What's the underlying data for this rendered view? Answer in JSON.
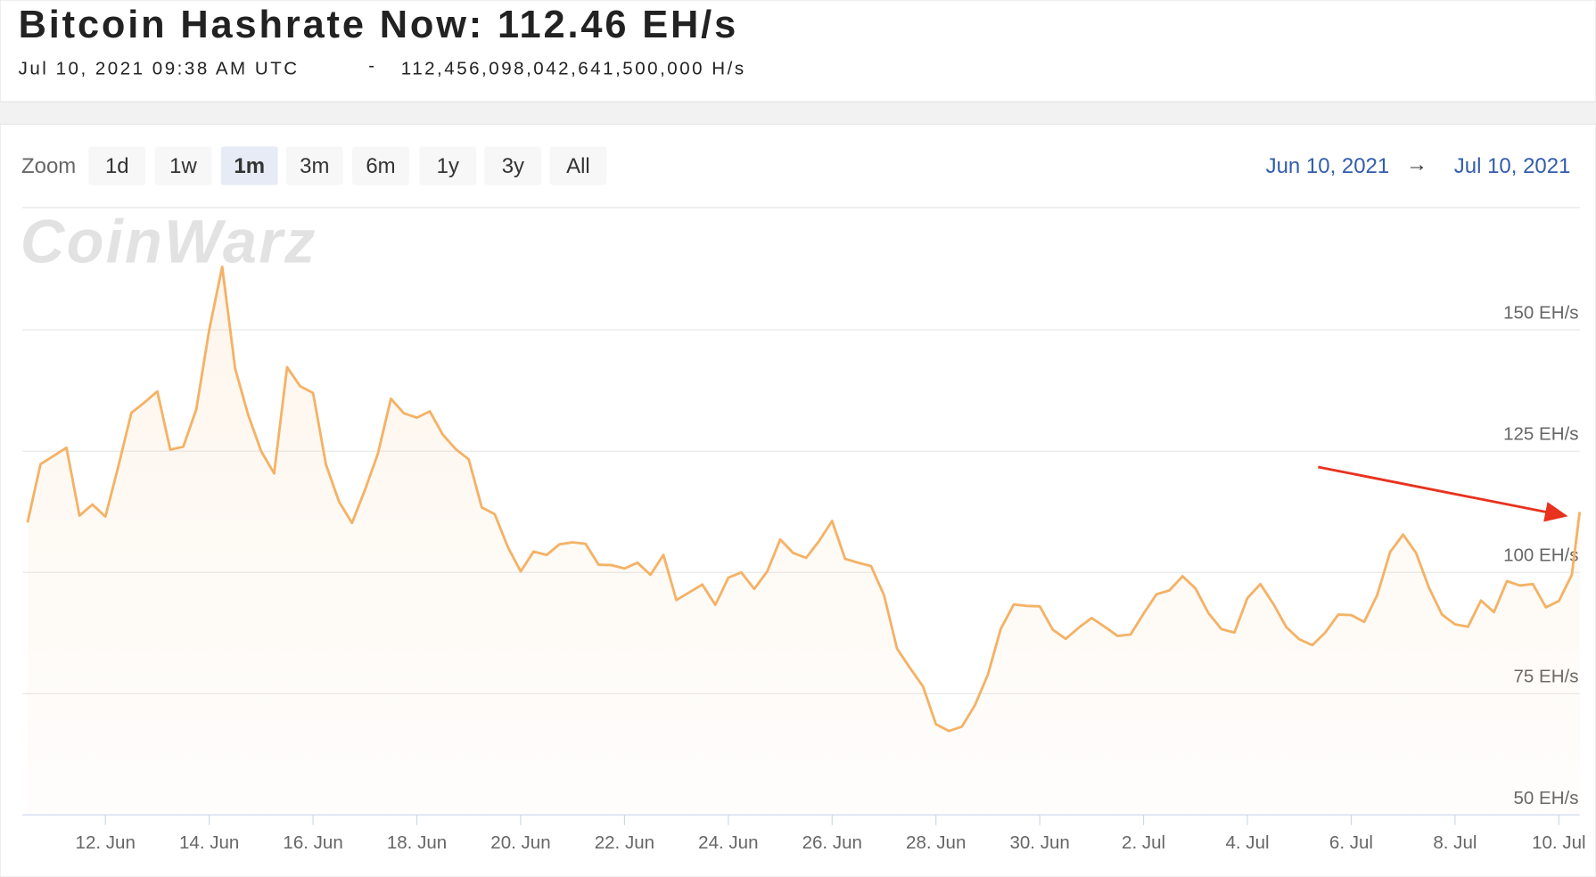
{
  "header": {
    "title": "Bitcoin Hashrate Now: 112.46 EH/s",
    "timestamp": "Jul 10, 2021 09:38 AM UTC",
    "separator": "-",
    "raw_hashrate": "112,456,098,042,641,500,000 H/s"
  },
  "toolbar": {
    "zoom_label": "Zoom",
    "zoom_options": [
      "1d",
      "1w",
      "1m",
      "3m",
      "6m",
      "1y",
      "3y",
      "All"
    ],
    "active_zoom": "1m",
    "range_from": "Jun 10, 2021",
    "range_arrow": "→",
    "range_to": "Jul 10, 2021"
  },
  "chart_data": {
    "type": "line",
    "watermark": "CoinWarz",
    "color": "#f4b266",
    "grid": true,
    "xlim": [
      "2021-06-10T09:38",
      "2021-07-10T09:38"
    ],
    "ylim": [
      50,
      175
    ],
    "yticks": [
      {
        "value": 50,
        "label": "50 EH/s"
      },
      {
        "value": 75,
        "label": "75 EH/s"
      },
      {
        "value": 100,
        "label": "100 EH/s"
      },
      {
        "value": 125,
        "label": "125 EH/s"
      },
      {
        "value": 150,
        "label": "150 EH/s"
      }
    ],
    "xticks": [
      {
        "value": "2021-06-12T00:00",
        "label": "12. Jun"
      },
      {
        "value": "2021-06-14T00:00",
        "label": "14. Jun"
      },
      {
        "value": "2021-06-16T00:00",
        "label": "16. Jun"
      },
      {
        "value": "2021-06-18T00:00",
        "label": "18. Jun"
      },
      {
        "value": "2021-06-20T00:00",
        "label": "20. Jun"
      },
      {
        "value": "2021-06-22T00:00",
        "label": "22. Jun"
      },
      {
        "value": "2021-06-24T00:00",
        "label": "24. Jun"
      },
      {
        "value": "2021-06-26T00:00",
        "label": "26. Jun"
      },
      {
        "value": "2021-06-28T00:00",
        "label": "28. Jun"
      },
      {
        "value": "2021-06-30T00:00",
        "label": "30. Jun"
      },
      {
        "value": "2021-07-02T00:00",
        "label": "2. Jul"
      },
      {
        "value": "2021-07-04T00:00",
        "label": "4. Jul"
      },
      {
        "value": "2021-07-06T00:00",
        "label": "6. Jul"
      },
      {
        "value": "2021-07-08T00:00",
        "label": "8. Jul"
      },
      {
        "value": "2021-07-10T00:00",
        "label": "10. Jul"
      }
    ],
    "x": [
      "2021-06-10T12:00",
      "2021-06-10T18:00",
      "2021-06-11T00:00",
      "2021-06-11T06:00",
      "2021-06-11T12:00",
      "2021-06-11T18:00",
      "2021-06-12T00:00",
      "2021-06-12T06:00",
      "2021-06-12T12:00",
      "2021-06-12T18:00",
      "2021-06-13T00:00",
      "2021-06-13T06:00",
      "2021-06-13T12:00",
      "2021-06-13T18:00",
      "2021-06-14T00:00",
      "2021-06-14T06:00",
      "2021-06-14T12:00",
      "2021-06-14T18:00",
      "2021-06-15T00:00",
      "2021-06-15T06:00",
      "2021-06-15T12:00",
      "2021-06-15T18:00",
      "2021-06-16T00:00",
      "2021-06-16T06:00",
      "2021-06-16T12:00",
      "2021-06-16T18:00",
      "2021-06-17T00:00",
      "2021-06-17T06:00",
      "2021-06-17T12:00",
      "2021-06-17T18:00",
      "2021-06-18T00:00",
      "2021-06-18T06:00",
      "2021-06-18T12:00",
      "2021-06-18T18:00",
      "2021-06-19T00:00",
      "2021-06-19T06:00",
      "2021-06-19T12:00",
      "2021-06-19T18:00",
      "2021-06-20T00:00",
      "2021-06-20T06:00",
      "2021-06-20T12:00",
      "2021-06-20T18:00",
      "2021-06-21T00:00",
      "2021-06-21T06:00",
      "2021-06-21T12:00",
      "2021-06-21T18:00",
      "2021-06-22T00:00",
      "2021-06-22T06:00",
      "2021-06-22T12:00",
      "2021-06-22T18:00",
      "2021-06-23T00:00",
      "2021-06-23T06:00",
      "2021-06-23T12:00",
      "2021-06-23T18:00",
      "2021-06-24T00:00",
      "2021-06-24T06:00",
      "2021-06-24T12:00",
      "2021-06-24T18:00",
      "2021-06-25T00:00",
      "2021-06-25T06:00",
      "2021-06-25T12:00",
      "2021-06-25T18:00",
      "2021-06-26T00:00",
      "2021-06-26T06:00",
      "2021-06-26T12:00",
      "2021-06-26T18:00",
      "2021-06-27T00:00",
      "2021-06-27T06:00",
      "2021-06-27T12:00",
      "2021-06-27T18:00",
      "2021-06-28T00:00",
      "2021-06-28T06:00",
      "2021-06-28T12:00",
      "2021-06-28T18:00",
      "2021-06-29T00:00",
      "2021-06-29T06:00",
      "2021-06-29T12:00",
      "2021-06-29T18:00",
      "2021-06-30T00:00",
      "2021-06-30T06:00",
      "2021-06-30T12:00",
      "2021-06-30T18:00",
      "2021-07-01T00:00",
      "2021-07-01T06:00",
      "2021-07-01T12:00",
      "2021-07-01T18:00",
      "2021-07-02T00:00",
      "2021-07-02T06:00",
      "2021-07-02T12:00",
      "2021-07-02T18:00",
      "2021-07-03T00:00",
      "2021-07-03T06:00",
      "2021-07-03T12:00",
      "2021-07-03T18:00",
      "2021-07-04T00:00",
      "2021-07-04T06:00",
      "2021-07-04T12:00",
      "2021-07-04T18:00",
      "2021-07-05T00:00",
      "2021-07-05T06:00",
      "2021-07-05T12:00",
      "2021-07-05T18:00",
      "2021-07-06T00:00",
      "2021-07-06T06:00",
      "2021-07-06T12:00",
      "2021-07-06T18:00",
      "2021-07-07T00:00",
      "2021-07-07T06:00",
      "2021-07-07T12:00",
      "2021-07-07T18:00",
      "2021-07-08T00:00",
      "2021-07-08T06:00",
      "2021-07-08T12:00",
      "2021-07-08T18:00",
      "2021-07-09T00:00",
      "2021-07-09T06:00",
      "2021-07-09T12:00",
      "2021-07-09T18:00",
      "2021-07-10T00:00",
      "2021-07-10T06:00",
      "2021-07-10T09:38"
    ],
    "values": [
      110.3,
      122.3,
      124,
      125.7,
      111.7,
      114,
      111.5,
      121.9,
      132.9,
      135,
      137.3,
      125.3,
      125.9,
      133.6,
      150,
      163,
      142,
      132.5,
      125,
      120.4,
      142.3,
      138.4,
      137,
      122.2,
      114.6,
      110.2,
      117,
      124.5,
      135.8,
      132.8,
      131.9,
      133.2,
      128.4,
      125.4,
      123.3,
      113.4,
      112,
      105.3,
      100.2,
      104.3,
      103.6,
      105.8,
      106.2,
      105.9,
      101.6,
      101.5,
      100.8,
      102,
      99.5,
      103.6,
      94.3,
      95.9,
      97.5,
      93.3,
      98.9,
      100,
      96.6,
      100.2,
      106.8,
      104,
      103,
      106.5,
      110.6,
      102.8,
      102,
      101.3,
      95.3,
      84.3,
      80.3,
      76.5,
      68.7,
      67.3,
      68.2,
      72.6,
      78.9,
      88.4,
      93.4,
      93.1,
      93,
      88.2,
      86.3,
      88.6,
      90.6,
      88.8,
      86.9,
      87.2,
      91.5,
      95.5,
      96.3,
      99.2,
      96.7,
      91.6,
      88.3,
      87.6,
      94.7,
      97.6,
      93.5,
      88.7,
      86.2,
      85,
      87.6,
      91.3,
      91.2,
      89.8,
      95.3,
      104.2,
      107.8,
      104,
      96.8,
      91.3,
      89.3,
      88.8,
      94.2,
      91.8,
      98.2,
      97.3,
      97.6,
      92.8,
      94.1,
      99.5,
      112.46
    ]
  }
}
